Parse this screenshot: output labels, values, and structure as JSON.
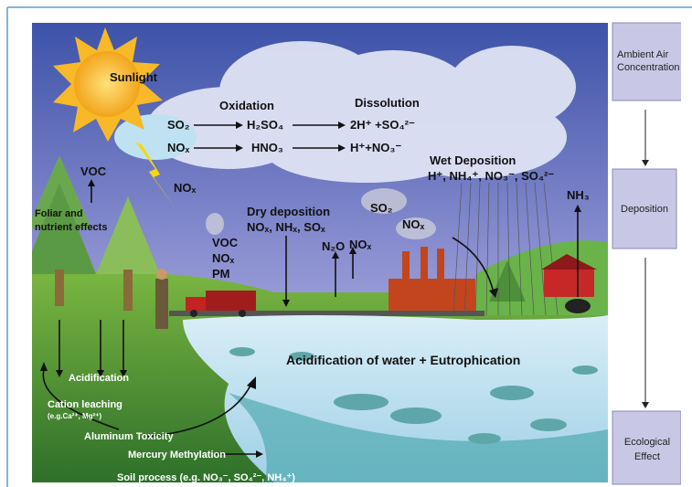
{
  "labels": {
    "sunlight": "Sunlight",
    "oxidation": "Oxidation",
    "dissolution": "Dissolution",
    "so2": "SO₂",
    "h2so4": "H₂SO₄",
    "so4_ions": "2H⁺ +SO₄²⁻",
    "nox1": "NOₓ",
    "hno3": "HNO₃",
    "no3_ions": "H⁺+NO₃⁻",
    "voc_tree": "VOC",
    "nox_lightning": "NOₓ",
    "foliar_1": "Foliar and",
    "foliar_2": "nutrient effects",
    "dry_deposition": "Dry deposition",
    "dry_species": "NOₓ, NHₓ, SOₓ",
    "truck_voc": "VOC",
    "truck_nox": "NOₓ",
    "truck_pm": "PM",
    "n2o": "N₂O",
    "nox_up": "NOₓ",
    "so2_factory": "SO₂",
    "nox_factory": "NOₓ",
    "wet_deposition": "Wet Deposition",
    "wet_species": "H⁺, NH₄⁺, NO₃⁻, SO₄²⁻",
    "nh3": "NH₃",
    "water": "Acidification of water + Eutrophication",
    "acidification": "Acidification",
    "cation_leaching": "Cation leaching",
    "cation_eg": "(e.g.Ca²⁺, Mg²⁺)",
    "aluminum": "Aluminum Toxicity",
    "mercury": "Mercury Methylation",
    "soil": "Soil process (e.g. NO₃⁻, SO₄²⁻, NH₄⁺)"
  },
  "flow": [
    {
      "lines": [
        "Ambient Air",
        "Concentration"
      ]
    },
    {
      "lines": [
        "Deposition"
      ]
    },
    {
      "lines": [
        "Ecological",
        "Effect"
      ]
    }
  ]
}
